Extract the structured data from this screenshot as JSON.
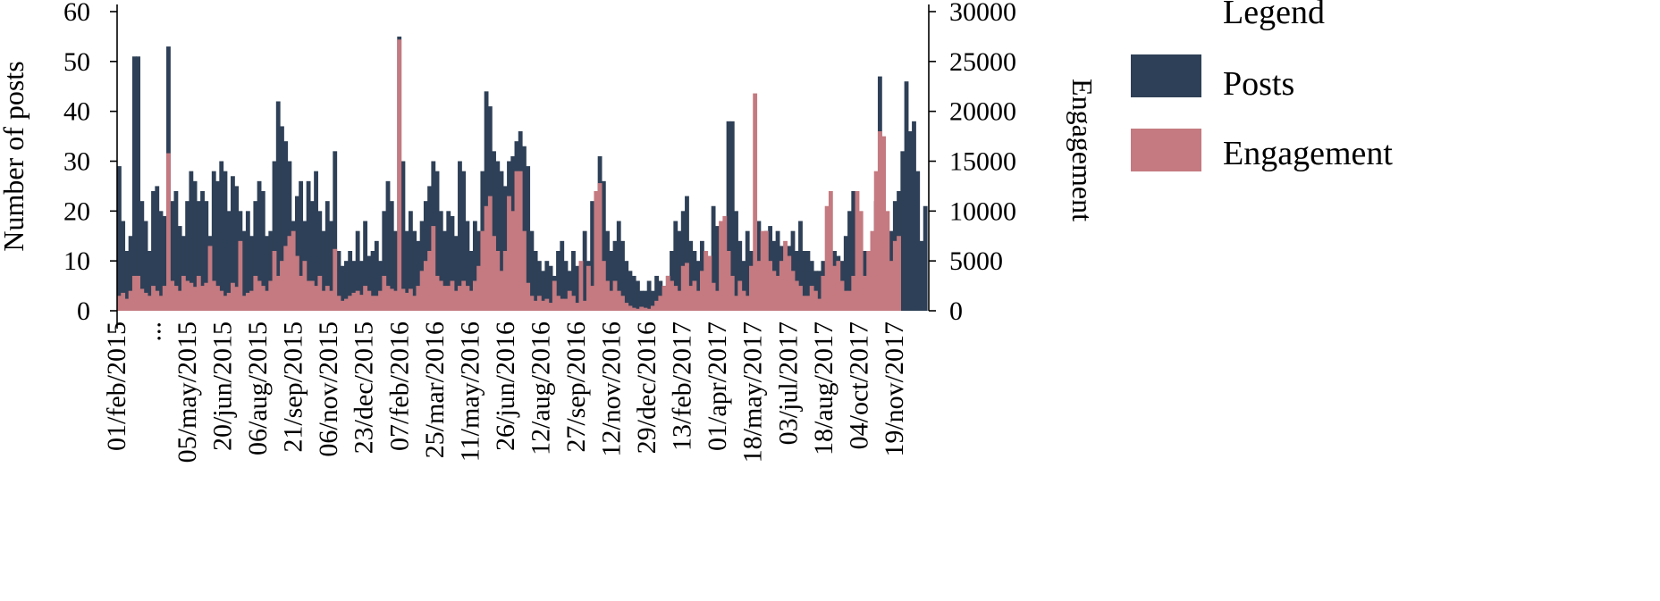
{
  "chart_data": {
    "type": "bar",
    "xlabel": "",
    "ylabel": "Number of posts",
    "y2label": "Engagement",
    "ylim": [
      0,
      60
    ],
    "y2lim": [
      0,
      30000
    ],
    "yticks": [
      0,
      10,
      20,
      30,
      40,
      50,
      60
    ],
    "y2ticks": [
      0,
      5000,
      10000,
      15000,
      20000,
      25000,
      30000
    ],
    "x_tick_labels": [
      "01/feb/2015",
      "...",
      "05/may/2015",
      "20/jun/2015",
      "06/aug/2015",
      "21/sep/2015",
      "06/nov/2015",
      "23/dec/2015",
      "07/feb/2016",
      "25/mar/2016",
      "11/may/2016",
      "26/jun/2016",
      "12/aug/2016",
      "27/sep/2016",
      "12/nov/2016",
      "29/dec/2016",
      "13/feb/2017",
      "01/apr/2017",
      "18/may/2017",
      "03/jul/2017",
      "18/aug/2017",
      "04/oct/2017",
      "19/nov/2017"
    ],
    "legend": {
      "title": "Legend",
      "placement": "right",
      "entries": [
        {
          "label": "Posts",
          "color": "#2e4057"
        },
        {
          "label": "Engagement",
          "color": "#c47a80"
        }
      ]
    },
    "series": [
      {
        "name": "Posts",
        "axis": "left",
        "color": "#2e4057",
        "values": [
          29,
          18,
          12,
          15,
          51,
          51,
          22,
          18,
          12,
          24,
          25,
          20,
          19,
          53,
          22,
          24,
          17,
          15,
          22,
          28,
          26,
          22,
          24,
          22,
          15,
          28,
          26,
          30,
          28,
          20,
          27,
          25,
          20,
          16,
          20,
          15,
          22,
          26,
          24,
          15,
          16,
          30,
          42,
          37,
          34,
          30,
          18,
          23,
          26,
          18,
          26,
          22,
          28,
          20,
          16,
          22,
          18,
          32,
          12,
          9,
          10,
          12,
          10,
          16,
          10,
          18,
          11,
          12,
          14,
          10,
          20,
          26,
          22,
          16,
          55,
          30,
          16,
          20,
          16,
          14,
          18,
          22,
          25,
          30,
          28,
          20,
          16,
          20,
          19,
          15,
          30,
          28,
          18,
          12,
          18,
          16,
          28,
          44,
          41,
          32,
          30,
          28,
          25,
          30,
          31,
          34,
          36,
          33,
          29,
          16,
          12,
          10,
          8,
          10,
          9,
          7,
          12,
          14,
          10,
          8,
          12,
          9,
          6,
          16,
          10,
          22,
          20,
          31,
          26,
          16,
          12,
          14,
          18,
          14,
          10,
          8,
          7,
          6,
          4,
          4,
          6,
          4,
          7,
          6,
          5,
          7,
          12,
          18,
          16,
          20,
          23,
          14,
          12,
          10,
          14,
          12,
          10,
          21,
          17,
          14,
          16,
          38,
          38,
          20,
          14,
          10,
          16,
          12,
          9,
          18,
          14,
          16,
          17,
          14,
          16,
          13,
          13,
          13,
          16,
          12,
          18,
          12,
          12,
          10,
          8,
          8,
          10,
          9,
          6,
          12,
          11,
          10,
          15,
          20,
          24,
          10,
          10,
          12,
          8,
          8,
          22,
          47,
          30,
          14,
          16,
          22,
          24,
          32,
          46,
          36,
          38,
          28,
          14,
          21
        ]
      },
      {
        "name": "Engagement",
        "axis": "right",
        "color": "#c47a80",
        "values": [
          1500,
          1800,
          1200,
          2000,
          3500,
          3500,
          2200,
          1800,
          1500,
          2500,
          2000,
          1500,
          2500,
          15800,
          3000,
          2500,
          2000,
          3500,
          3000,
          2800,
          2400,
          3500,
          2500,
          2800,
          6500,
          3000,
          2500,
          2000,
          1500,
          1800,
          2800,
          2400,
          7000,
          1500,
          1800,
          2000,
          3500,
          3000,
          2500,
          2000,
          3000,
          6000,
          3500,
          5000,
          6500,
          7500,
          8000,
          5500,
          3500,
          5000,
          3000,
          3000,
          2500,
          3500,
          2000,
          2500,
          2000,
          6200,
          1500,
          1000,
          1200,
          1500,
          1800,
          2000,
          1600,
          2500,
          2000,
          1500,
          1500,
          2000,
          3500,
          2500,
          2200,
          2000,
          27200,
          2200,
          1800,
          2200,
          1500,
          2500,
          4000,
          5000,
          6000,
          8500,
          3500,
          3000,
          2500,
          2500,
          3000,
          2000,
          2500,
          3000,
          2500,
          2000,
          3000,
          4500,
          8000,
          10500,
          11500,
          7500,
          6000,
          4000,
          6000,
          11500,
          10000,
          14000,
          14000,
          8000,
          2800,
          1500,
          1000,
          1500,
          1000,
          1200,
          800,
          3000,
          1500,
          1200,
          1200,
          2000,
          1500,
          800,
          5000,
          1000,
          4500,
          2500,
          12000,
          12800,
          5000,
          3000,
          2000,
          3000,
          2000,
          1500,
          800,
          500,
          300,
          200,
          400,
          300,
          200,
          500,
          1000,
          1500,
          2500,
          3500,
          3000,
          2500,
          2000,
          4500,
          4800,
          2500,
          3000,
          2000,
          4000,
          6000,
          5500,
          2800,
          2000,
          9000,
          9500,
          6000,
          3500,
          1500,
          3000,
          2000,
          1500,
          4500,
          21800,
          5000,
          8000,
          8000,
          5000,
          4000,
          3500,
          5000,
          7000,
          5500,
          4000,
          3000,
          2500,
          1500,
          1500,
          2500,
          2000,
          1200,
          3500,
          10500,
          12000,
          4500,
          5000,
          3000,
          2000,
          2000,
          3500,
          12000,
          10000,
          3500,
          6000,
          8000,
          14000,
          18000,
          17500,
          10000,
          5000,
          7000,
          7500
        ]
      }
    ]
  }
}
